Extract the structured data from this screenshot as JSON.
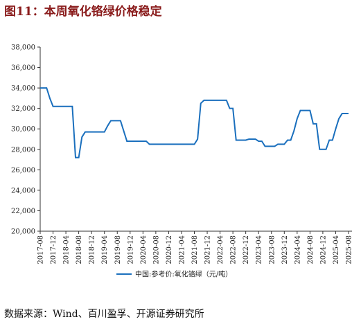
{
  "chart_data": {
    "type": "line",
    "title": "图11：本周氧化铬绿价格稳定",
    "x": [
      "2017-08",
      "2017-09",
      "2017-10",
      "2017-11",
      "2017-12",
      "2018-01",
      "2018-02",
      "2018-03",
      "2018-04",
      "2018-05",
      "2018-06",
      "2018-07",
      "2018-08",
      "2018-09",
      "2018-10",
      "2018-11",
      "2018-12",
      "2019-01",
      "2019-02",
      "2019-03",
      "2019-04",
      "2019-05",
      "2019-06",
      "2019-07",
      "2019-08",
      "2019-09",
      "2019-10",
      "2019-11",
      "2019-12",
      "2020-01",
      "2020-02",
      "2020-03",
      "2020-04",
      "2020-05",
      "2020-06",
      "2020-07",
      "2020-08",
      "2020-09",
      "2020-10",
      "2020-11",
      "2020-12",
      "2021-01",
      "2021-02",
      "2021-03",
      "2021-04",
      "2021-05",
      "2021-06",
      "2021-07",
      "2021-08",
      "2021-09",
      "2021-10",
      "2021-11",
      "2021-12",
      "2022-01",
      "2022-02",
      "2022-03",
      "2022-04",
      "2022-05",
      "2022-06",
      "2022-07",
      "2022-08",
      "2022-09",
      "2022-10",
      "2022-11",
      "2022-12",
      "2023-01",
      "2023-02",
      "2023-03",
      "2023-04",
      "2023-05",
      "2023-06",
      "2023-07",
      "2023-08",
      "2023-09",
      "2023-10",
      "2023-11",
      "2023-12",
      "2024-01",
      "2024-02",
      "2024-03",
      "2024-04",
      "2024-05",
      "2024-06",
      "2024-07",
      "2024-08",
      "2024-09",
      "2024-10",
      "2024-11",
      "2024-12",
      "2025-01",
      "2025-02",
      "2025-03",
      "2025-04",
      "2025-05",
      "2025-06",
      "2025-07",
      "2025-08"
    ],
    "series": [
      {
        "name": "中国:参考价:氧化铬绿（元/吨）",
        "color": "#1a6fbd",
        "values": [
          34000,
          34000,
          34000,
          33000,
          32200,
          32200,
          32200,
          32200,
          32200,
          32200,
          32200,
          27200,
          27200,
          29200,
          29700,
          29700,
          29700,
          29700,
          29700,
          29700,
          29700,
          30300,
          30800,
          30800,
          30800,
          30800,
          29800,
          28800,
          28800,
          28800,
          28800,
          28800,
          28800,
          28800,
          28500,
          28500,
          28500,
          28500,
          28500,
          28500,
          28500,
          28500,
          28500,
          28500,
          28500,
          28500,
          28500,
          28500,
          28500,
          29000,
          32500,
          32800,
          32800,
          32800,
          32800,
          32800,
          32800,
          32800,
          32800,
          32000,
          32000,
          28900,
          28900,
          28900,
          28900,
          29000,
          29000,
          29000,
          28800,
          28800,
          28300,
          28300,
          28300,
          28300,
          28500,
          28500,
          28500,
          28900,
          28900,
          29800,
          31000,
          31800,
          31800,
          31800,
          31800,
          30500,
          30500,
          28000,
          28000,
          28000,
          28900,
          28900,
          30000,
          31000,
          31500,
          31500,
          31500
        ]
      }
    ],
    "ylim": [
      20000,
      38000
    ],
    "yticks": [
      {
        "value": 20000,
        "label": "20,000"
      },
      {
        "value": 22000,
        "label": "22,000"
      },
      {
        "value": 24000,
        "label": "24,000"
      },
      {
        "value": 26000,
        "label": "26,000"
      },
      {
        "value": 28000,
        "label": "28,000"
      },
      {
        "value": 30000,
        "label": "30,000"
      },
      {
        "value": 32000,
        "label": "32,000"
      },
      {
        "value": 34000,
        "label": "34,000"
      },
      {
        "value": 36000,
        "label": "36,000"
      },
      {
        "value": 38000,
        "label": "38,000"
      }
    ],
    "xticks": [
      "2017-08",
      "2017-12",
      "2018-04",
      "2018-08",
      "2018-12",
      "2019-04",
      "2019-08",
      "2019-12",
      "2020-04",
      "2020-08",
      "2020-12",
      "2021-04",
      "2021-08",
      "2021-12",
      "2022-04",
      "2022-08",
      "2022-12",
      "2023-04",
      "2023-08",
      "2023-12",
      "2024-04",
      "2024-08",
      "2024-12",
      "2025-04",
      "2025-08"
    ],
    "grid": false
  },
  "source": "数据来源：Wind、百川盈孚、开源证券研究所"
}
